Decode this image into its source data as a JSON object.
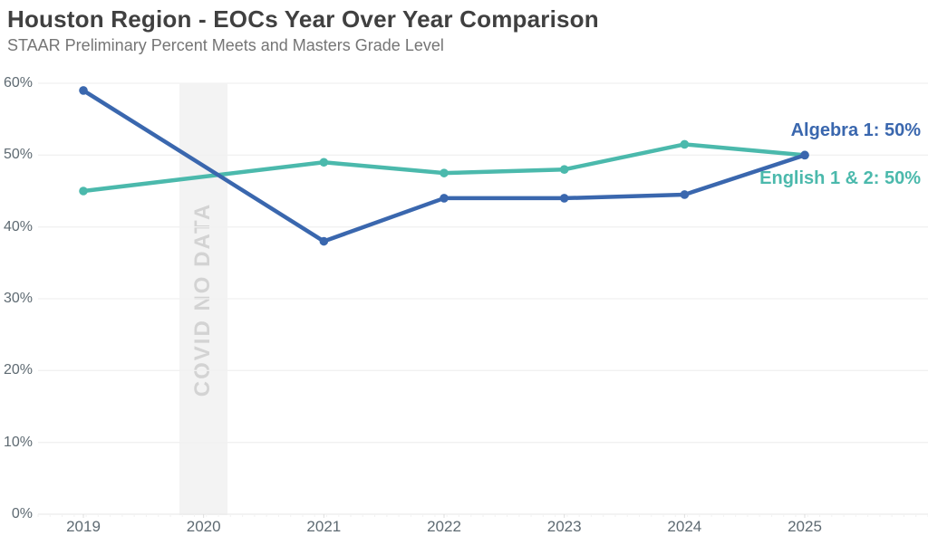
{
  "chart_data": {
    "type": "line",
    "title": "Houston Region - EOCs Year Over Year Comparison",
    "subtitle": "STAAR Preliminary Percent Meets and Masters Grade Level",
    "x": [
      "2019",
      "2020",
      "2021",
      "2022",
      "2023",
      "2024",
      "2025"
    ],
    "series": [
      {
        "name": "Algebra 1",
        "end_label": "Algebra 1: 50%",
        "color": "#3a67ae",
        "values": [
          59,
          null,
          38,
          44,
          44,
          44.5,
          50
        ]
      },
      {
        "name": "English 1 & 2",
        "end_label": "English 1 & 2: 50%",
        "color": "#4bb9ac",
        "values": [
          45,
          null,
          49,
          47.5,
          48,
          51.5,
          50
        ]
      }
    ],
    "ylim": [
      0,
      60
    ],
    "yticks": [
      "0%",
      "10%",
      "20%",
      "30%",
      "40%",
      "50%",
      "60%"
    ],
    "ytick_values": [
      0,
      10,
      20,
      30,
      40,
      50,
      60
    ],
    "grid": "horizontal",
    "legend": "series-end-labels-right",
    "annotation": {
      "label": "COVID NO DATA",
      "x": "2020"
    }
  },
  "colors": {
    "grid_line": "#f1f1f1",
    "axis_line": "#ececec",
    "minor_tick": "#f2f2f2",
    "major_tick": "#dddddd",
    "band_fill": "#f3f3f3",
    "band_text": "#d3d3d3",
    "title_text": "#404040",
    "subtitle_text": "#757575",
    "tick_text": "#5e6a72"
  }
}
